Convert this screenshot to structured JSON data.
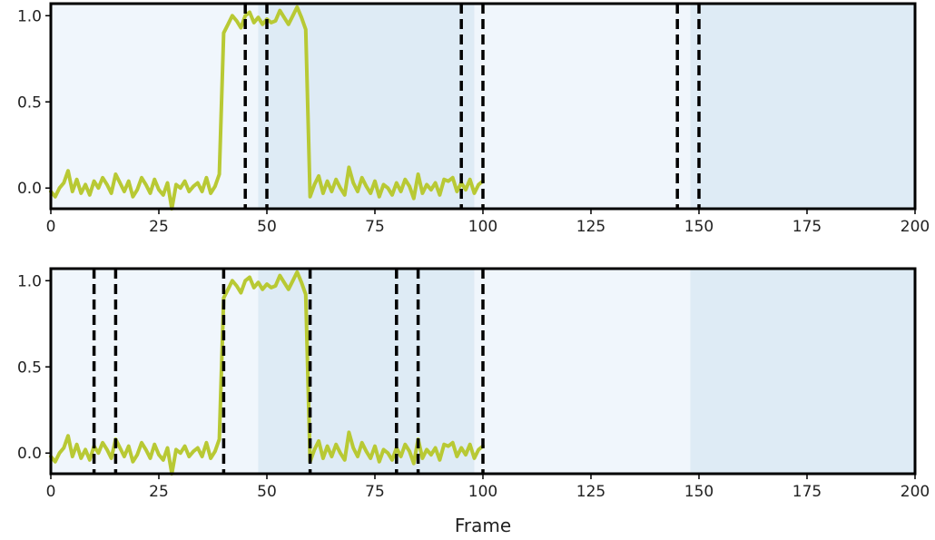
{
  "colors": {
    "background_light": "#f0f6fc",
    "background_dark": "#deebf5",
    "signal": "#b8c934",
    "boundary": "#000000",
    "axes": "#000000"
  },
  "chart_data": [
    {
      "type": "line",
      "name": "top-panel",
      "x_ticks": [
        "0",
        "25",
        "50",
        "75",
        "100",
        "125",
        "150",
        "175",
        "200"
      ],
      "y_ticks": [
        "0.0",
        "0.5",
        "1.0"
      ],
      "xlim": [
        0,
        200
      ],
      "ylim": [
        -0.12,
        1.07
      ],
      "bands": [
        {
          "start": 0,
          "end": 48,
          "tone": "light"
        },
        {
          "start": 48,
          "end": 98,
          "tone": "dark"
        },
        {
          "start": 98,
          "end": 148,
          "tone": "light"
        },
        {
          "start": 148,
          "end": 200,
          "tone": "dark"
        }
      ],
      "boundaries": [
        45,
        50,
        95,
        100,
        145,
        150
      ],
      "series": {
        "x": [
          0,
          1,
          2,
          3,
          4,
          5,
          6,
          7,
          8,
          9,
          10,
          11,
          12,
          13,
          14,
          15,
          16,
          17,
          18,
          19,
          20,
          21,
          22,
          23,
          24,
          25,
          26,
          27,
          28,
          29,
          30,
          31,
          32,
          33,
          34,
          35,
          36,
          37,
          38,
          39,
          40,
          41,
          42,
          43,
          44,
          45,
          46,
          47,
          48,
          49,
          50,
          51,
          52,
          53,
          54,
          55,
          56,
          57,
          58,
          59,
          60,
          61,
          62,
          63,
          64,
          65,
          66,
          67,
          68,
          69,
          70,
          71,
          72,
          73,
          74,
          75,
          76,
          77,
          78,
          79,
          80,
          81,
          82,
          83,
          84,
          85,
          86,
          87,
          88,
          89,
          90,
          91,
          92,
          93,
          94,
          95,
          96,
          97,
          98,
          99,
          100
        ],
        "y": [
          -0.02,
          -0.05,
          0.0,
          0.03,
          0.1,
          -0.02,
          0.05,
          -0.03,
          0.02,
          -0.04,
          0.04,
          0.0,
          0.06,
          0.02,
          -0.03,
          0.08,
          0.03,
          -0.02,
          0.04,
          -0.05,
          -0.01,
          0.06,
          0.02,
          -0.03,
          0.05,
          -0.01,
          -0.04,
          0.03,
          -0.12,
          0.02,
          0.0,
          0.04,
          -0.02,
          0.01,
          0.03,
          -0.02,
          0.06,
          -0.03,
          0.01,
          0.08,
          0.9,
          0.95,
          1.0,
          0.97,
          0.93,
          1.0,
          1.02,
          0.96,
          0.99,
          0.95,
          0.98,
          0.96,
          0.97,
          1.03,
          0.99,
          0.95,
          1.0,
          1.05,
          0.99,
          0.92,
          -0.05,
          0.02,
          0.07,
          -0.03,
          0.04,
          -0.02,
          0.05,
          0.0,
          -0.04,
          0.12,
          0.03,
          -0.02,
          0.06,
          0.01,
          -0.03,
          0.04,
          -0.05,
          0.02,
          0.0,
          -0.04,
          0.03,
          -0.02,
          0.05,
          0.01,
          -0.06,
          0.08,
          -0.03,
          0.02,
          -0.01,
          0.03,
          -0.04,
          0.05,
          0.04,
          0.06,
          -0.02,
          0.03,
          -0.01,
          0.05,
          -0.03,
          0.02,
          0.04
        ]
      }
    },
    {
      "type": "line",
      "name": "bottom-panel",
      "x_ticks": [
        "0",
        "25",
        "50",
        "75",
        "100",
        "125",
        "150",
        "175",
        "200"
      ],
      "y_ticks": [
        "0.0",
        "0.5",
        "1.0"
      ],
      "xlim": [
        0,
        200
      ],
      "ylim": [
        -0.12,
        1.07
      ],
      "bands": [
        {
          "start": 0,
          "end": 48,
          "tone": "light"
        },
        {
          "start": 48,
          "end": 98,
          "tone": "dark"
        },
        {
          "start": 98,
          "end": 148,
          "tone": "light"
        },
        {
          "start": 148,
          "end": 200,
          "tone": "dark"
        }
      ],
      "boundaries": [
        10,
        15,
        40,
        60,
        80,
        85,
        100
      ],
      "series": {
        "x": [
          0,
          1,
          2,
          3,
          4,
          5,
          6,
          7,
          8,
          9,
          10,
          11,
          12,
          13,
          14,
          15,
          16,
          17,
          18,
          19,
          20,
          21,
          22,
          23,
          24,
          25,
          26,
          27,
          28,
          29,
          30,
          31,
          32,
          33,
          34,
          35,
          36,
          37,
          38,
          39,
          40,
          41,
          42,
          43,
          44,
          45,
          46,
          47,
          48,
          49,
          50,
          51,
          52,
          53,
          54,
          55,
          56,
          57,
          58,
          59,
          60,
          61,
          62,
          63,
          64,
          65,
          66,
          67,
          68,
          69,
          70,
          71,
          72,
          73,
          74,
          75,
          76,
          77,
          78,
          79,
          80,
          81,
          82,
          83,
          84,
          85,
          86,
          87,
          88,
          89,
          90,
          91,
          92,
          93,
          94,
          95,
          96,
          97,
          98,
          99,
          100
        ],
        "y": [
          -0.02,
          -0.05,
          0.0,
          0.03,
          0.1,
          -0.02,
          0.05,
          -0.03,
          0.02,
          -0.04,
          0.04,
          0.0,
          0.06,
          0.02,
          -0.03,
          0.08,
          0.03,
          -0.02,
          0.04,
          -0.05,
          -0.01,
          0.06,
          0.02,
          -0.03,
          0.05,
          -0.01,
          -0.04,
          0.03,
          -0.12,
          0.02,
          0.0,
          0.04,
          -0.02,
          0.01,
          0.03,
          -0.02,
          0.06,
          -0.03,
          0.01,
          0.08,
          0.9,
          0.95,
          1.0,
          0.97,
          0.93,
          1.0,
          1.02,
          0.96,
          0.99,
          0.95,
          0.98,
          0.96,
          0.97,
          1.03,
          0.99,
          0.95,
          1.0,
          1.05,
          0.99,
          0.92,
          -0.05,
          0.02,
          0.07,
          -0.03,
          0.04,
          -0.02,
          0.05,
          0.0,
          -0.04,
          0.12,
          0.03,
          -0.02,
          0.06,
          0.01,
          -0.03,
          0.04,
          -0.05,
          0.02,
          0.0,
          -0.04,
          0.03,
          -0.02,
          0.05,
          0.01,
          -0.06,
          0.08,
          -0.03,
          0.02,
          -0.01,
          0.03,
          -0.04,
          0.05,
          0.04,
          0.06,
          -0.02,
          0.03,
          -0.01,
          0.05,
          -0.03,
          0.02,
          0.04
        ]
      },
      "xlabel": "Frame"
    }
  ]
}
